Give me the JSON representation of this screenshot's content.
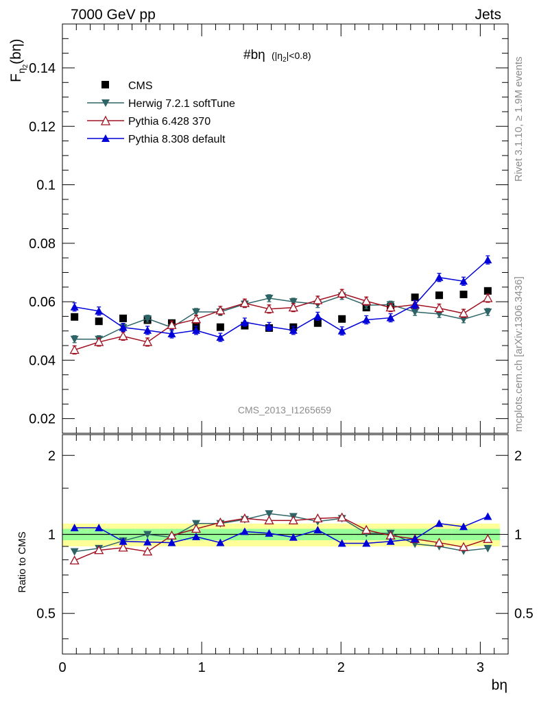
{
  "header": {
    "left": "7000 GeV pp",
    "right": "Jets"
  },
  "side_labels": {
    "rivet": "Rivet 3.1.10, ≥ 1.9M events",
    "mcplots": "mcplots.cern.ch [arXiv:1306.3436]"
  },
  "analysis_id": "CMS_2013_I1265659",
  "colors": {
    "cms": "#000000",
    "herwig": "#2e6466",
    "pythia6": "#a01020",
    "pythia8": "#0000d8",
    "band_inner": "#99ff99",
    "band_outer": "#ffff99"
  },
  "chart_data": [
    {
      "type": "scatter",
      "panel": "main",
      "title": "#bη (|η2|<0.8)",
      "title_main": "#bη",
      "title_sub": "(|η",
      "title_sub_index": "2",
      "title_sub_tail": "|<0.8)",
      "ylabel": "F",
      "ylabel_sub": "η",
      "ylabel_subsub": "2",
      "ylabel_tail": "(bη)",
      "xlim": [
        0,
        3.2
      ],
      "ylim": [
        0.015,
        0.155
      ],
      "yticks": [
        0.02,
        0.04,
        0.06,
        0.08,
        0.1,
        0.12,
        0.14
      ],
      "ytick_labels": [
        "0.02",
        "0.04",
        "0.06",
        "0.08",
        "0.1",
        "0.12",
        "0.14"
      ],
      "x": [
        0.087,
        0.262,
        0.436,
        0.611,
        0.785,
        0.96,
        1.134,
        1.309,
        1.484,
        1.658,
        1.833,
        2.007,
        2.182,
        2.356,
        2.531,
        2.705,
        2.88,
        3.054
      ],
      "series": [
        {
          "name": "CMS",
          "marker": "square",
          "values": [
            0.0548,
            0.0533,
            0.0543,
            0.0537,
            0.0527,
            0.0514,
            0.0513,
            0.0518,
            0.051,
            0.0513,
            0.0527,
            0.0541,
            0.058,
            0.0582,
            0.0615,
            0.0622,
            0.0625,
            0.0637
          ],
          "errors": [
            0.0008,
            0.0008,
            0.0008,
            0.0008,
            0.0008,
            0.0008,
            0.0008,
            0.0008,
            0.0008,
            0.0008,
            0.0008,
            0.0008,
            0.0008,
            0.0008,
            0.0008,
            0.0008,
            0.0008,
            0.0008
          ]
        },
        {
          "name": "Herwig 7.2.1 softTune",
          "marker": "triangle-down",
          "values": [
            0.0472,
            0.0472,
            0.0512,
            0.0542,
            0.0512,
            0.0565,
            0.0565,
            0.0592,
            0.0612,
            0.06,
            0.0592,
            0.062,
            0.0588,
            0.059,
            0.0565,
            0.0558,
            0.054,
            0.0565
          ],
          "errors": [
            0.0012,
            0.0012,
            0.0012,
            0.0012,
            0.0012,
            0.0012,
            0.0012,
            0.0012,
            0.0012,
            0.0012,
            0.0012,
            0.0012,
            0.0012,
            0.0012,
            0.0012,
            0.0012,
            0.0012,
            0.0012
          ]
        },
        {
          "name": "Pythia 6.428 370",
          "marker": "triangle-open",
          "values": [
            0.0435,
            0.0462,
            0.0482,
            0.0462,
            0.052,
            0.054,
            0.057,
            0.0595,
            0.0575,
            0.058,
            0.0605,
            0.0628,
            0.0602,
            0.058,
            0.059,
            0.0578,
            0.056,
            0.0612
          ],
          "errors": [
            0.0014,
            0.0014,
            0.0014,
            0.0014,
            0.0014,
            0.0014,
            0.0014,
            0.0014,
            0.0014,
            0.0014,
            0.0014,
            0.0014,
            0.0014,
            0.0014,
            0.0014,
            0.0014,
            0.0014,
            0.0014
          ]
        },
        {
          "name": "Pythia 8.308 default",
          "marker": "triangle-up",
          "values": [
            0.0582,
            0.0568,
            0.0512,
            0.0502,
            0.049,
            0.0502,
            0.0478,
            0.053,
            0.0515,
            0.0502,
            0.055,
            0.05,
            0.0538,
            0.0545,
            0.059,
            0.0683,
            0.067,
            0.0743
          ],
          "errors": [
            0.0014,
            0.0014,
            0.0014,
            0.0014,
            0.0014,
            0.0014,
            0.0014,
            0.0014,
            0.0014,
            0.0014,
            0.0014,
            0.0014,
            0.0014,
            0.0014,
            0.0014,
            0.0014,
            0.0014,
            0.0014
          ]
        }
      ],
      "legend_position": "top-left"
    },
    {
      "type": "scatter",
      "panel": "ratio",
      "xlabel": "bη",
      "ylabel": "Ratio to CMS",
      "xlim": [
        0,
        3.2
      ],
      "ylim": [
        0.35,
        2.4
      ],
      "yscale": "log",
      "xticks": [
        0,
        1,
        2,
        3
      ],
      "xtick_labels": [
        "0",
        "1",
        "2",
        "3"
      ],
      "yticks": [
        0.5,
        1,
        2
      ],
      "ytick_labels": [
        "0.5",
        "1",
        "2"
      ],
      "band_inner": [
        0.95,
        1.05
      ],
      "band_outer": [
        0.9,
        1.1
      ],
      "x": [
        0.087,
        0.262,
        0.436,
        0.611,
        0.785,
        0.96,
        1.134,
        1.309,
        1.484,
        1.658,
        1.833,
        2.007,
        2.182,
        2.356,
        2.531,
        2.705,
        2.88,
        3.054
      ],
      "series": [
        {
          "name": "Herwig 7.2.1 softTune",
          "marker": "triangle-down",
          "values": [
            0.86,
            0.885,
            0.945,
            1.0,
            0.975,
            1.1,
            1.1,
            1.14,
            1.2,
            1.17,
            1.12,
            1.15,
            1.01,
            1.01,
            0.92,
            0.9,
            0.865,
            0.885
          ]
        },
        {
          "name": "Pythia 6.428 370",
          "marker": "triangle-open",
          "values": [
            0.795,
            0.87,
            0.89,
            0.86,
            0.99,
            1.05,
            1.11,
            1.15,
            1.13,
            1.13,
            1.15,
            1.16,
            1.04,
            0.99,
            0.96,
            0.93,
            0.895,
            0.96
          ]
        },
        {
          "name": "Pythia 8.308 default",
          "marker": "triangle-up",
          "values": [
            1.06,
            1.06,
            0.94,
            0.935,
            0.93,
            0.98,
            0.93,
            1.025,
            1.01,
            0.975,
            1.04,
            0.925,
            0.925,
            0.94,
            0.96,
            1.1,
            1.07,
            1.17
          ]
        }
      ]
    }
  ]
}
